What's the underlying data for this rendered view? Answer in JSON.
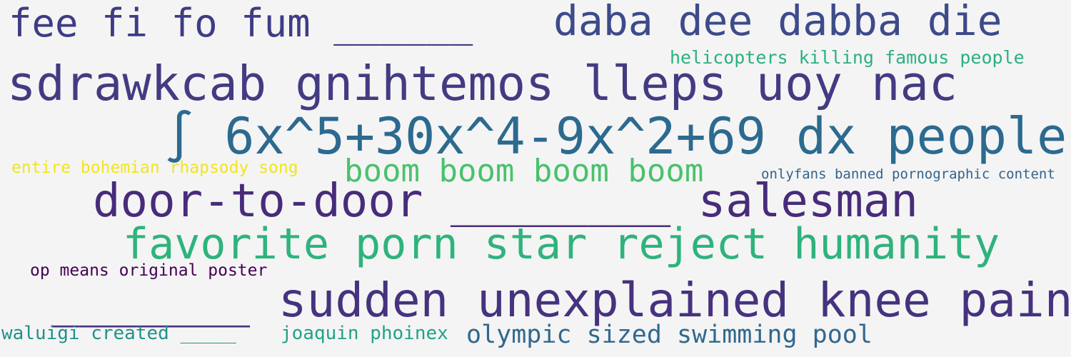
{
  "words": [
    {
      "text": "fee fi fo fum ______",
      "color": "#3e3c84"
    },
    {
      "text": "daba dee dabba die",
      "color": "#3d4b8a"
    },
    {
      "text": "helicopters killing famous people",
      "color": "#2bb07f"
    },
    {
      "text": "sdrawkcab gnihtemos lleps uoy nac",
      "color": "#433b82"
    },
    {
      "text": "∫ 6x^5+30x^4-9x^2+69 dx people",
      "color": "#2c6a8f"
    },
    {
      "text": "entire bohemian rhapsody song",
      "color": "#f1e51d"
    },
    {
      "text": "boom boom boom boom",
      "color": "#4ac16d"
    },
    {
      "text": "onlyfans banned pornographic content",
      "color": "#33638d"
    },
    {
      "text": "door-to-door ________ salesman",
      "color": "#472c7a"
    },
    {
      "text": "favorite porn star reject humanity",
      "color": "#2eb37c"
    },
    {
      "text": "op means original poster",
      "color": "#440154"
    },
    {
      "text": "_______ sudden unexplained knee pain",
      "color": "#46327e"
    },
    {
      "text": "waluigi created _____",
      "color": "#21918c"
    },
    {
      "text": "joaquin phoinex",
      "color": "#20a386"
    },
    {
      "text": "olympic sized swimming pool",
      "color": "#31688e"
    }
  ]
}
